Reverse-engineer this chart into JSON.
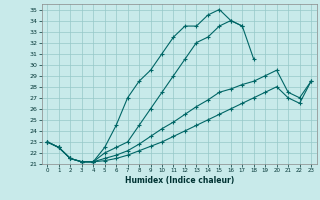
{
  "xlabel": "Humidex (Indice chaleur)",
  "bg_color": "#c8eaea",
  "grid_color": "#96c8c8",
  "line_color": "#006666",
  "xlim": [
    -0.5,
    23.5
  ],
  "ylim": [
    21,
    35.5
  ],
  "xticks": [
    0,
    1,
    2,
    3,
    4,
    5,
    6,
    7,
    8,
    9,
    10,
    11,
    12,
    13,
    14,
    15,
    16,
    17,
    18,
    19,
    20,
    21,
    22,
    23
  ],
  "yticks": [
    21,
    22,
    23,
    24,
    25,
    26,
    27,
    28,
    29,
    30,
    31,
    32,
    33,
    34,
    35
  ],
  "series": [
    {
      "x": [
        0,
        1,
        2,
        3,
        4,
        5,
        6,
        7,
        8,
        9,
        10,
        11,
        12,
        13,
        14,
        15,
        16,
        17,
        18
      ],
      "y": [
        23.0,
        22.5,
        21.5,
        21.2,
        21.2,
        22.5,
        24.5,
        27.0,
        28.5,
        29.5,
        31.0,
        32.5,
        33.5,
        33.5,
        34.5,
        35.0,
        34.0,
        33.5,
        30.5
      ]
    },
    {
      "x": [
        0,
        1,
        2,
        3,
        4,
        5,
        6,
        7,
        8,
        9,
        10,
        11,
        12,
        13,
        14,
        15,
        16,
        17
      ],
      "y": [
        23.0,
        22.5,
        21.5,
        21.2,
        21.2,
        22.0,
        22.5,
        23.0,
        24.5,
        26.0,
        27.5,
        29.0,
        30.5,
        32.0,
        32.5,
        33.5,
        34.0,
        33.5
      ]
    },
    {
      "x": [
        0,
        1,
        2,
        3,
        4,
        5,
        6,
        7,
        8,
        9,
        10,
        11,
        12,
        13,
        14,
        15,
        16,
        17,
        18,
        19,
        20,
        21,
        22,
        23
      ],
      "y": [
        23.0,
        22.5,
        21.5,
        21.2,
        21.2,
        21.5,
        21.8,
        22.2,
        22.8,
        23.5,
        24.2,
        24.8,
        25.5,
        26.2,
        26.8,
        27.5,
        27.8,
        28.2,
        28.5,
        29.0,
        29.5,
        27.5,
        27.0,
        28.5
      ]
    },
    {
      "x": [
        0,
        1,
        2,
        3,
        4,
        5,
        6,
        7,
        8,
        9,
        10,
        11,
        12,
        13,
        14,
        15,
        16,
        17,
        18,
        19,
        20,
        21,
        22,
        23
      ],
      "y": [
        23.0,
        22.5,
        21.5,
        21.2,
        21.2,
        21.3,
        21.5,
        21.8,
        22.2,
        22.6,
        23.0,
        23.5,
        24.0,
        24.5,
        25.0,
        25.5,
        26.0,
        26.5,
        27.0,
        27.5,
        28.0,
        27.0,
        26.5,
        28.5
      ]
    }
  ]
}
